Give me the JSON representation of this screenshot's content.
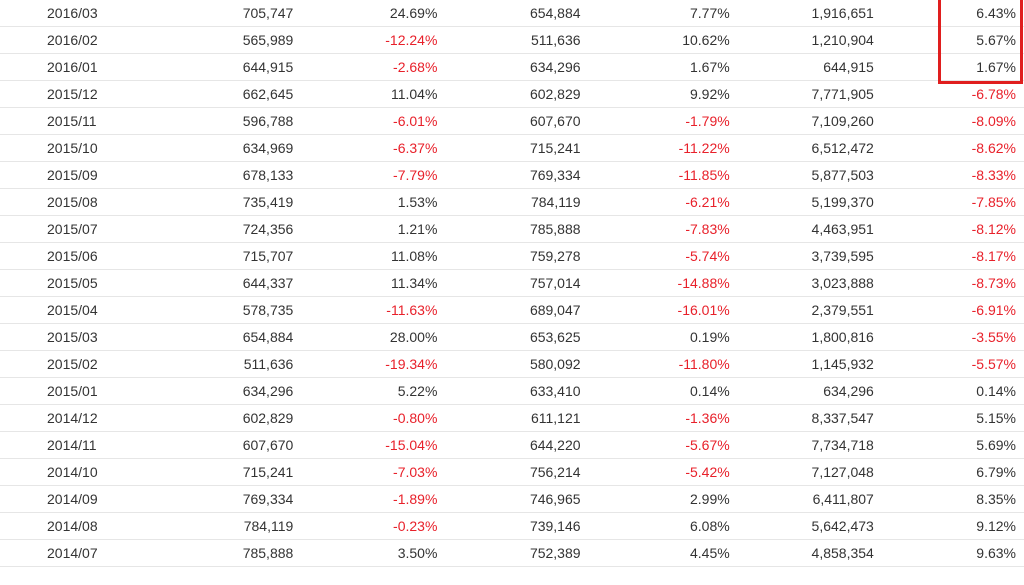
{
  "rows": [
    {
      "month": "2016/03",
      "v1": "705,747",
      "p1": "24.69%",
      "v2": "654,884",
      "p2": "7.77%",
      "cum": "1,916,651",
      "p3": "6.43%"
    },
    {
      "month": "2016/02",
      "v1": "565,989",
      "p1": "-12.24%",
      "v2": "511,636",
      "p2": "10.62%",
      "cum": "1,210,904",
      "p3": "5.67%"
    },
    {
      "month": "2016/01",
      "v1": "644,915",
      "p1": "-2.68%",
      "v2": "634,296",
      "p2": "1.67%",
      "cum": "644,915",
      "p3": "1.67%"
    },
    {
      "month": "2015/12",
      "v1": "662,645",
      "p1": "11.04%",
      "v2": "602,829",
      "p2": "9.92%",
      "cum": "7,771,905",
      "p3": "-6.78%"
    },
    {
      "month": "2015/11",
      "v1": "596,788",
      "p1": "-6.01%",
      "v2": "607,670",
      "p2": "-1.79%",
      "cum": "7,109,260",
      "p3": "-8.09%"
    },
    {
      "month": "2015/10",
      "v1": "634,969",
      "p1": "-6.37%",
      "v2": "715,241",
      "p2": "-11.22%",
      "cum": "6,512,472",
      "p3": "-8.62%"
    },
    {
      "month": "2015/09",
      "v1": "678,133",
      "p1": "-7.79%",
      "v2": "769,334",
      "p2": "-11.85%",
      "cum": "5,877,503",
      "p3": "-8.33%"
    },
    {
      "month": "2015/08",
      "v1": "735,419",
      "p1": "1.53%",
      "v2": "784,119",
      "p2": "-6.21%",
      "cum": "5,199,370",
      "p3": "-7.85%"
    },
    {
      "month": "2015/07",
      "v1": "724,356",
      "p1": "1.21%",
      "v2": "785,888",
      "p2": "-7.83%",
      "cum": "4,463,951",
      "p3": "-8.12%"
    },
    {
      "month": "2015/06",
      "v1": "715,707",
      "p1": "11.08%",
      "v2": "759,278",
      "p2": "-5.74%",
      "cum": "3,739,595",
      "p3": "-8.17%"
    },
    {
      "month": "2015/05",
      "v1": "644,337",
      "p1": "11.34%",
      "v2": "757,014",
      "p2": "-14.88%",
      "cum": "3,023,888",
      "p3": "-8.73%"
    },
    {
      "month": "2015/04",
      "v1": "578,735",
      "p1": "-11.63%",
      "v2": "689,047",
      "p2": "-16.01%",
      "cum": "2,379,551",
      "p3": "-6.91%"
    },
    {
      "month": "2015/03",
      "v1": "654,884",
      "p1": "28.00%",
      "v2": "653,625",
      "p2": "0.19%",
      "cum": "1,800,816",
      "p3": "-3.55%"
    },
    {
      "month": "2015/02",
      "v1": "511,636",
      "p1": "-19.34%",
      "v2": "580,092",
      "p2": "-11.80%",
      "cum": "1,145,932",
      "p3": "-5.57%"
    },
    {
      "month": "2015/01",
      "v1": "634,296",
      "p1": "5.22%",
      "v2": "633,410",
      "p2": "0.14%",
      "cum": "634,296",
      "p3": "0.14%"
    },
    {
      "month": "2014/12",
      "v1": "602,829",
      "p1": "-0.80%",
      "v2": "611,121",
      "p2": "-1.36%",
      "cum": "8,337,547",
      "p3": "5.15%"
    },
    {
      "month": "2014/11",
      "v1": "607,670",
      "p1": "-15.04%",
      "v2": "644,220",
      "p2": "-5.67%",
      "cum": "7,734,718",
      "p3": "5.69%"
    },
    {
      "month": "2014/10",
      "v1": "715,241",
      "p1": "-7.03%",
      "v2": "756,214",
      "p2": "-5.42%",
      "cum": "7,127,048",
      "p3": "6.79%"
    },
    {
      "month": "2014/09",
      "v1": "769,334",
      "p1": "-1.89%",
      "v2": "746,965",
      "p2": "2.99%",
      "cum": "6,411,807",
      "p3": "8.35%"
    },
    {
      "month": "2014/08",
      "v1": "784,119",
      "p1": "-0.23%",
      "v2": "739,146",
      "p2": "6.08%",
      "cum": "5,642,473",
      "p3": "9.12%"
    },
    {
      "month": "2014/07",
      "v1": "785,888",
      "p1": "3.50%",
      "v2": "752,389",
      "p2": "4.45%",
      "cum": "4,858,354",
      "p3": "9.63%"
    }
  ],
  "colors": {
    "text": "#333333",
    "negative": "#e8202a",
    "highlight": "#e01e1e",
    "divider": "#e6e6e6"
  }
}
